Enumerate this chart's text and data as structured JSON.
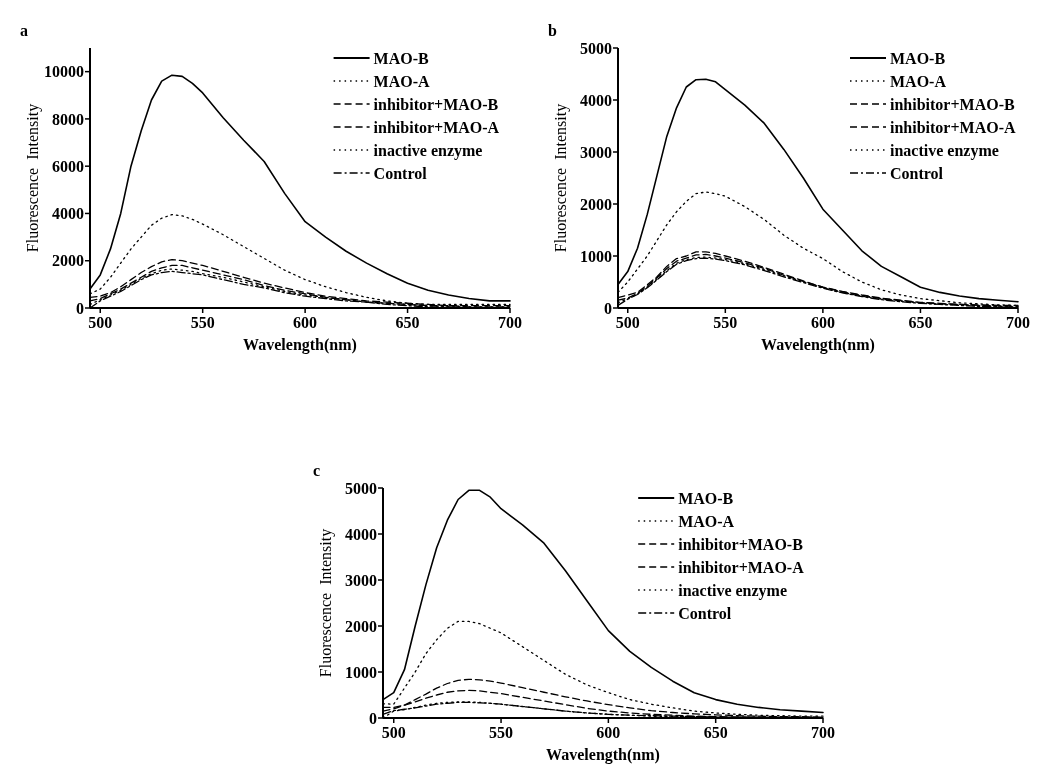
{
  "chart_data": [
    {
      "type": "line",
      "title": "a",
      "xlabel": "Wavelength(nm)",
      "ylabel": "Fluorescence  Intensity",
      "xlim": [
        495,
        700
      ],
      "xticks": [
        500,
        550,
        600,
        650,
        700
      ],
      "ylim": [
        0,
        11000
      ],
      "yticks": [
        0,
        2000,
        4000,
        6000,
        8000,
        10000
      ],
      "legend": "top right",
      "grid": false,
      "marker": "none",
      "x": [
        495,
        500,
        505,
        510,
        515,
        520,
        525,
        530,
        535,
        540,
        545,
        550,
        560,
        570,
        580,
        590,
        600,
        610,
        620,
        630,
        640,
        650,
        660,
        670,
        680,
        690,
        700
      ],
      "series": [
        {
          "name": "MAO-B",
          "color": "#000000",
          "line_style": "solid",
          "values": [
            800,
            1400,
            2500,
            4000,
            6000,
            7500,
            8800,
            9600,
            9850,
            9800,
            9500,
            9100,
            8050,
            7100,
            6200,
            4850,
            3650,
            3000,
            2400,
            1900,
            1450,
            1050,
            750,
            550,
            400,
            300,
            300
          ]
        },
        {
          "name": "MAO-A",
          "color": "#000000",
          "line_style": "dotted",
          "values": [
            600,
            800,
            1300,
            1900,
            2500,
            3000,
            3500,
            3800,
            3950,
            3900,
            3750,
            3550,
            3100,
            2600,
            2100,
            1600,
            1200,
            900,
            650,
            450,
            300,
            200,
            150,
            150,
            150,
            150,
            150
          ]
        },
        {
          "name": "inhibitor+MAO-B",
          "color": "#000000",
          "line_style": "dashed",
          "values": [
            450,
            500,
            650,
            900,
            1200,
            1500,
            1750,
            1950,
            2050,
            2000,
            1900,
            1800,
            1550,
            1300,
            1050,
            850,
            650,
            500,
            400,
            300,
            250,
            200,
            150,
            100,
            100,
            100,
            100
          ]
        },
        {
          "name": "inhibitor+MAO-A",
          "color": "#000000",
          "line_style": "dashed",
          "values": [
            300,
            400,
            600,
            800,
            1050,
            1300,
            1550,
            1700,
            1800,
            1800,
            1700,
            1600,
            1400,
            1200,
            950,
            750,
            600,
            450,
            350,
            250,
            200,
            150,
            100,
            100,
            50,
            50,
            50
          ]
        },
        {
          "name": "inactive enzyme",
          "color": "#000000",
          "line_style": "dotted",
          "values": [
            150,
            350,
            550,
            750,
            1000,
            1250,
            1450,
            1600,
            1650,
            1600,
            1550,
            1450,
            1300,
            1100,
            900,
            700,
            550,
            450,
            350,
            250,
            200,
            150,
            100,
            50,
            50,
            50,
            50
          ]
        },
        {
          "name": "Control",
          "color": "#000000",
          "line_style": "dashdot",
          "values": [
            0,
            300,
            500,
            700,
            950,
            1200,
            1400,
            1500,
            1550,
            1500,
            1450,
            1400,
            1200,
            1000,
            850,
            650,
            500,
            400,
            300,
            250,
            150,
            100,
            50,
            50,
            0,
            0,
            0
          ]
        }
      ]
    },
    {
      "type": "line",
      "title": "b",
      "xlabel": "Wavelength(nm)",
      "ylabel": "Fluorescence  Intensity",
      "xlim": [
        495,
        700
      ],
      "xticks": [
        500,
        550,
        600,
        650,
        700
      ],
      "ylim": [
        0,
        5000
      ],
      "yticks": [
        0,
        1000,
        2000,
        3000,
        4000,
        5000
      ],
      "legend": "top right",
      "grid": false,
      "marker": "none",
      "x": [
        495,
        500,
        505,
        510,
        515,
        520,
        525,
        530,
        535,
        540,
        545,
        550,
        560,
        570,
        580,
        590,
        600,
        610,
        620,
        630,
        640,
        650,
        660,
        670,
        680,
        690,
        700
      ],
      "series": [
        {
          "name": "MAO-B",
          "color": "#000000",
          "line_style": "solid",
          "values": [
            450,
            700,
            1150,
            1800,
            2550,
            3300,
            3850,
            4250,
            4390,
            4400,
            4350,
            4200,
            3900,
            3550,
            3050,
            2500,
            1900,
            1500,
            1100,
            800,
            600,
            400,
            300,
            230,
            180,
            150,
            120
          ]
        },
        {
          "name": "MAO-A",
          "color": "#000000",
          "line_style": "dotted",
          "values": [
            300,
            500,
            750,
            1000,
            1300,
            1600,
            1850,
            2050,
            2200,
            2230,
            2200,
            2150,
            1950,
            1700,
            1400,
            1150,
            950,
            700,
            500,
            350,
            250,
            180,
            140,
            100,
            80,
            60,
            50
          ]
        },
        {
          "name": "inhibitor+MAO-B",
          "color": "#000000",
          "line_style": "dashed",
          "values": [
            200,
            250,
            300,
            450,
            600,
            800,
            950,
            1000,
            1080,
            1080,
            1050,
            1000,
            900,
            780,
            650,
            520,
            400,
            320,
            250,
            190,
            150,
            110,
            90,
            70,
            60,
            50,
            50
          ]
        },
        {
          "name": "inhibitor+MAO-A",
          "color": "#000000",
          "line_style": "dashed",
          "values": [
            150,
            190,
            280,
            420,
            580,
            760,
            900,
            960,
            1020,
            1030,
            1000,
            960,
            870,
            760,
            630,
            510,
            400,
            310,
            240,
            180,
            140,
            100,
            80,
            70,
            50,
            40,
            30
          ]
        },
        {
          "name": "inactive enzyme",
          "color": "#000000",
          "line_style": "dotted",
          "values": [
            100,
            180,
            270,
            400,
            550,
            720,
            860,
            930,
            970,
            980,
            960,
            930,
            850,
            740,
            620,
            500,
            390,
            300,
            230,
            170,
            130,
            100,
            70,
            60,
            40,
            30,
            20
          ]
        },
        {
          "name": "Control",
          "color": "#000000",
          "line_style": "dashdot",
          "values": [
            50,
            170,
            260,
            390,
            540,
            700,
            840,
            910,
            950,
            960,
            940,
            910,
            830,
            720,
            600,
            490,
            380,
            290,
            220,
            160,
            120,
            90,
            70,
            50,
            30,
            20,
            10
          ]
        }
      ]
    },
    {
      "type": "line",
      "title": "c",
      "xlabel": "Wavelength(nm)",
      "ylabel": "Fluorescence  Intensity",
      "xlim": [
        495,
        700
      ],
      "xticks": [
        500,
        550,
        600,
        650,
        700
      ],
      "ylim": [
        0,
        5000
      ],
      "yticks": [
        0,
        1000,
        2000,
        3000,
        4000,
        5000
      ],
      "legend": "top right",
      "grid": false,
      "marker": "none",
      "x": [
        495,
        500,
        505,
        510,
        515,
        520,
        525,
        530,
        535,
        540,
        545,
        550,
        560,
        570,
        580,
        590,
        600,
        610,
        620,
        630,
        640,
        650,
        660,
        670,
        680,
        690,
        700
      ],
      "series": [
        {
          "name": "MAO-B",
          "color": "#000000",
          "line_style": "solid",
          "values": [
            400,
            550,
            1050,
            2000,
            2900,
            3700,
            4300,
            4750,
            4950,
            4950,
            4800,
            4550,
            4200,
            3800,
            3200,
            2550,
            1900,
            1450,
            1100,
            800,
            550,
            400,
            300,
            230,
            180,
            150,
            120
          ]
        },
        {
          "name": "MAO-A",
          "color": "#000000",
          "line_style": "dotted",
          "values": [
            310,
            300,
            650,
            1000,
            1400,
            1700,
            1950,
            2100,
            2100,
            2050,
            1950,
            1850,
            1550,
            1250,
            950,
            720,
            550,
            400,
            300,
            220,
            150,
            110,
            80,
            60,
            50,
            40,
            40
          ]
        },
        {
          "name": "inhibitor+MAO-B",
          "color": "#000000",
          "line_style": "dashed",
          "values": [
            230,
            230,
            280,
            350,
            430,
            500,
            560,
            590,
            600,
            590,
            560,
            530,
            450,
            370,
            290,
            210,
            150,
            110,
            80,
            60,
            40,
            30,
            20,
            20,
            20,
            10,
            10
          ]
        },
        {
          "name": "inhibitor+MAO-A",
          "color": "#000000",
          "line_style": "dashed",
          "values": [
            150,
            200,
            280,
            400,
            520,
            650,
            750,
            820,
            840,
            830,
            800,
            760,
            660,
            560,
            460,
            370,
            290,
            220,
            160,
            120,
            90,
            70,
            50,
            40,
            30,
            30,
            20
          ]
        },
        {
          "name": "inactive enzyme",
          "color": "#000000",
          "line_style": "dotted",
          "values": [
            0,
            150,
            180,
            230,
            280,
            320,
            340,
            350,
            350,
            340,
            320,
            300,
            250,
            200,
            150,
            110,
            80,
            60,
            40,
            30,
            30,
            20,
            20,
            10,
            10,
            10,
            0
          ]
        },
        {
          "name": "Control",
          "color": "#000000",
          "line_style": "dashdot",
          "values": [
            80,
            160,
            190,
            220,
            260,
            300,
            320,
            340,
            340,
            330,
            320,
            300,
            250,
            200,
            150,
            110,
            80,
            60,
            50,
            40,
            30,
            20,
            20,
            10,
            10,
            10,
            10
          ]
        }
      ]
    }
  ]
}
